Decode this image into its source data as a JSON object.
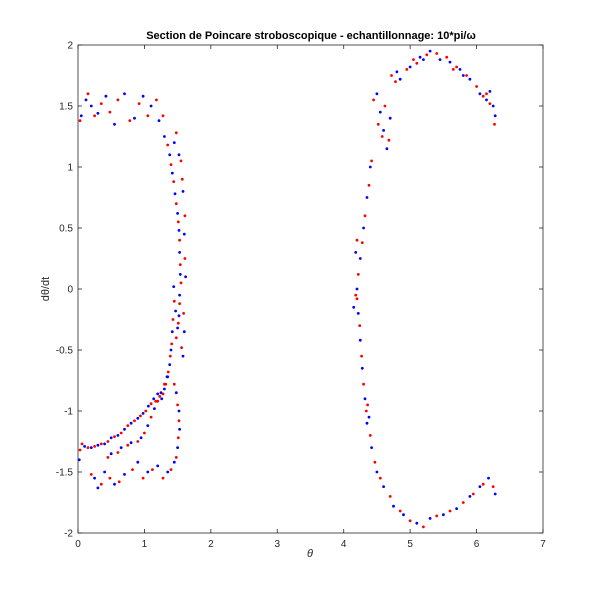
{
  "chart_data": {
    "type": "scatter",
    "title": "Section de Poincare stroboscopique  - echantillonnage: 10*pi/ω",
    "xlabel": "θ",
    "ylabel": "dθ/dt",
    "xlim": [
      0,
      7
    ],
    "ylim": [
      -2,
      2
    ],
    "xticks": [
      "0",
      "1",
      "2",
      "3",
      "4",
      "5",
      "6",
      "7"
    ],
    "yticks": [
      "-2",
      "-1.5",
      "-1",
      "-0.5",
      "0",
      "0.5",
      "1",
      "1.5",
      "2"
    ],
    "grid": false,
    "colors": {
      "blue": "#0000ff",
      "red": "#ff0000",
      "axis": "#262626"
    },
    "series": [
      {
        "color": "#0000ff",
        "points": [
          [
            0.05,
            1.42
          ],
          [
            0.12,
            1.55
          ],
          [
            0.2,
            1.5
          ],
          [
            0.3,
            1.44
          ],
          [
            0.42,
            1.58
          ],
          [
            0.55,
            1.35
          ],
          [
            0.7,
            1.6
          ],
          [
            0.85,
            1.4
          ],
          [
            0.98,
            1.58
          ],
          [
            1.1,
            1.5
          ],
          [
            1.22,
            1.38
          ],
          [
            1.3,
            1.25
          ],
          [
            1.38,
            1.1
          ],
          [
            1.42,
            0.95
          ],
          [
            1.46,
            0.78
          ],
          [
            1.5,
            0.62
          ],
          [
            1.52,
            0.48
          ],
          [
            1.53,
            0.3
          ],
          [
            1.54,
            0.12
          ],
          [
            1.53,
            -0.05
          ],
          [
            1.52,
            -0.22
          ],
          [
            1.5,
            -0.32
          ],
          [
            1.47,
            -0.18
          ],
          [
            1.44,
            0.02
          ],
          [
            1.42,
            -0.35
          ],
          [
            1.4,
            -0.5
          ],
          [
            1.38,
            -0.62
          ],
          [
            1.34,
            -0.72
          ],
          [
            1.3,
            -0.82
          ],
          [
            1.26,
            -0.9
          ],
          [
            1.2,
            -0.86
          ],
          [
            1.14,
            -0.9
          ],
          [
            1.06,
            -0.96
          ],
          [
            0.98,
            -1.02
          ],
          [
            0.9,
            -1.06
          ],
          [
            0.8,
            -1.1
          ],
          [
            0.7,
            -1.15
          ],
          [
            0.6,
            -1.2
          ],
          [
            0.5,
            -1.22
          ],
          [
            0.4,
            -1.27
          ],
          [
            0.3,
            -1.28
          ],
          [
            0.2,
            -1.3
          ],
          [
            0.1,
            -1.29
          ],
          [
            0.02,
            -1.4
          ],
          [
            0.5,
            -1.35
          ],
          [
            0.65,
            -1.3
          ],
          [
            0.8,
            -1.26
          ],
          [
            0.95,
            -1.22
          ],
          [
            1.05,
            -1.12
          ],
          [
            1.15,
            -0.98
          ],
          [
            1.25,
            -0.85
          ],
          [
            1.35,
            -0.72
          ],
          [
            1.48,
            -0.85
          ],
          [
            1.52,
            -1.0
          ],
          [
            1.53,
            -1.15
          ],
          [
            1.5,
            -1.3
          ],
          [
            1.45,
            -1.42
          ],
          [
            1.35,
            -1.5
          ],
          [
            1.2,
            -1.45
          ],
          [
            1.05,
            -1.5
          ],
          [
            0.9,
            -1.42
          ],
          [
            0.7,
            -1.52
          ],
          [
            0.55,
            -1.6
          ],
          [
            0.4,
            -1.5
          ],
          [
            0.3,
            -1.63
          ],
          [
            0.25,
            -1.55
          ],
          [
            1.58,
            -0.55
          ],
          [
            1.6,
            -0.35
          ],
          [
            1.62,
            0.1
          ],
          [
            1.6,
            0.45
          ],
          [
            1.58,
            0.8
          ],
          [
            1.52,
            1.1
          ],
          [
            1.45,
            1.2
          ],
          [
            4.5,
            1.6
          ],
          [
            4.55,
            1.45
          ],
          [
            4.6,
            1.3
          ],
          [
            4.65,
            1.15
          ],
          [
            4.7,
            1.4
          ],
          [
            4.4,
            1.0
          ],
          [
            4.35,
            0.75
          ],
          [
            4.3,
            0.5
          ],
          [
            4.25,
            0.25
          ],
          [
            4.2,
            0.0
          ],
          [
            4.22,
            -0.2
          ],
          [
            4.25,
            -0.42
          ],
          [
            4.28,
            -0.65
          ],
          [
            4.32,
            -0.9
          ],
          [
            4.35,
            -1.1
          ],
          [
            4.42,
            -1.3
          ],
          [
            4.5,
            -1.5
          ],
          [
            4.6,
            -1.62
          ],
          [
            4.75,
            -1.78
          ],
          [
            4.9,
            -1.85
          ],
          [
            5.1,
            -1.92
          ],
          [
            5.3,
            -1.88
          ],
          [
            5.5,
            -1.85
          ],
          [
            5.7,
            -1.8
          ],
          [
            5.9,
            -1.7
          ],
          [
            6.05,
            -1.62
          ],
          [
            6.18,
            -1.55
          ],
          [
            6.28,
            -1.68
          ],
          [
            4.85,
            1.72
          ],
          [
            5.0,
            1.82
          ],
          [
            5.15,
            1.9
          ],
          [
            5.3,
            1.95
          ],
          [
            5.45,
            1.88
          ],
          [
            5.6,
            1.86
          ],
          [
            5.75,
            1.8
          ],
          [
            5.9,
            1.72
          ],
          [
            6.05,
            1.6
          ],
          [
            6.15,
            1.55
          ],
          [
            6.25,
            1.5
          ],
          [
            6.28,
            1.42
          ],
          [
            4.8,
            1.78
          ],
          [
            5.2,
            1.88
          ],
          [
            5.8,
            1.75
          ],
          [
            6.2,
            1.62
          ],
          [
            4.15,
            -0.15
          ],
          [
            4.18,
            0.3
          ],
          [
            4.38,
            -1.05
          ]
        ]
      },
      {
        "color": "#ff0000",
        "points": [
          [
            0.03,
            1.38
          ],
          [
            0.15,
            1.6
          ],
          [
            0.25,
            1.42
          ],
          [
            0.35,
            1.52
          ],
          [
            0.48,
            1.45
          ],
          [
            0.6,
            1.55
          ],
          [
            0.78,
            1.38
          ],
          [
            0.92,
            1.52
          ],
          [
            1.05,
            1.42
          ],
          [
            1.18,
            1.55
          ],
          [
            1.28,
            1.42
          ],
          [
            1.35,
            1.18
          ],
          [
            1.4,
            1.02
          ],
          [
            1.44,
            0.88
          ],
          [
            1.48,
            0.7
          ],
          [
            1.51,
            0.55
          ],
          [
            1.53,
            0.4
          ],
          [
            1.54,
            0.2
          ],
          [
            1.55,
            0.05
          ],
          [
            1.53,
            -0.12
          ],
          [
            1.51,
            -0.28
          ],
          [
            1.48,
            -0.4
          ],
          [
            1.45,
            -0.1
          ],
          [
            1.43,
            -0.25
          ],
          [
            1.41,
            -0.45
          ],
          [
            1.39,
            -0.55
          ],
          [
            1.36,
            -0.68
          ],
          [
            1.32,
            -0.78
          ],
          [
            1.28,
            -0.86
          ],
          [
            1.23,
            -0.88
          ],
          [
            1.17,
            -0.92
          ],
          [
            1.1,
            -0.94
          ],
          [
            1.02,
            -1.0
          ],
          [
            0.94,
            -1.04
          ],
          [
            0.85,
            -1.08
          ],
          [
            0.75,
            -1.12
          ],
          [
            0.65,
            -1.18
          ],
          [
            0.55,
            -1.21
          ],
          [
            0.45,
            -1.25
          ],
          [
            0.35,
            -1.27
          ],
          [
            0.25,
            -1.29
          ],
          [
            0.15,
            -1.3
          ],
          [
            0.06,
            -1.27
          ],
          [
            0.03,
            -1.32
          ],
          [
            0.45,
            -1.38
          ],
          [
            0.6,
            -1.34
          ],
          [
            0.75,
            -1.28
          ],
          [
            0.9,
            -1.25
          ],
          [
            1.0,
            -1.18
          ],
          [
            1.1,
            -1.05
          ],
          [
            1.2,
            -0.92
          ],
          [
            1.3,
            -0.78
          ],
          [
            1.45,
            -0.78
          ],
          [
            1.5,
            -0.95
          ],
          [
            1.52,
            -1.08
          ],
          [
            1.51,
            -1.22
          ],
          [
            1.48,
            -1.38
          ],
          [
            1.4,
            -1.48
          ],
          [
            1.28,
            -1.55
          ],
          [
            1.12,
            -1.48
          ],
          [
            0.98,
            -1.55
          ],
          [
            0.82,
            -1.48
          ],
          [
            0.62,
            -1.58
          ],
          [
            0.48,
            -1.55
          ],
          [
            0.35,
            -1.6
          ],
          [
            0.2,
            -1.52
          ],
          [
            1.56,
            -0.48
          ],
          [
            1.59,
            -0.2
          ],
          [
            1.61,
            0.25
          ],
          [
            1.61,
            0.6
          ],
          [
            1.57,
            0.9
          ],
          [
            1.55,
            1.05
          ],
          [
            1.48,
            1.28
          ],
          [
            4.45,
            1.55
          ],
          [
            4.52,
            1.35
          ],
          [
            4.58,
            1.25
          ],
          [
            4.62,
            1.5
          ],
          [
            4.68,
            1.22
          ],
          [
            4.42,
            1.05
          ],
          [
            4.38,
            0.85
          ],
          [
            4.32,
            0.6
          ],
          [
            4.28,
            0.38
          ],
          [
            4.22,
            0.12
          ],
          [
            4.2,
            -0.08
          ],
          [
            4.24,
            -0.3
          ],
          [
            4.27,
            -0.55
          ],
          [
            4.3,
            -0.78
          ],
          [
            4.34,
            -1.0
          ],
          [
            4.4,
            -1.2
          ],
          [
            4.47,
            -1.42
          ],
          [
            4.55,
            -1.55
          ],
          [
            4.7,
            -1.7
          ],
          [
            4.85,
            -1.82
          ],
          [
            5.0,
            -1.9
          ],
          [
            5.2,
            -1.95
          ],
          [
            5.4,
            -1.86
          ],
          [
            5.6,
            -1.82
          ],
          [
            5.8,
            -1.75
          ],
          [
            5.95,
            -1.68
          ],
          [
            6.1,
            -1.6
          ],
          [
            6.25,
            -1.62
          ],
          [
            4.78,
            1.7
          ],
          [
            4.95,
            1.8
          ],
          [
            5.1,
            1.85
          ],
          [
            5.25,
            1.92
          ],
          [
            5.4,
            1.93
          ],
          [
            5.55,
            1.9
          ],
          [
            5.7,
            1.82
          ],
          [
            5.85,
            1.75
          ],
          [
            6.0,
            1.66
          ],
          [
            6.1,
            1.58
          ],
          [
            6.2,
            1.52
          ],
          [
            6.27,
            1.35
          ],
          [
            4.72,
            1.75
          ],
          [
            5.05,
            1.88
          ],
          [
            5.65,
            1.8
          ],
          [
            6.15,
            1.6
          ],
          [
            4.18,
            -0.05
          ],
          [
            4.2,
            0.4
          ],
          [
            4.36,
            -0.95
          ]
        ]
      }
    ]
  }
}
